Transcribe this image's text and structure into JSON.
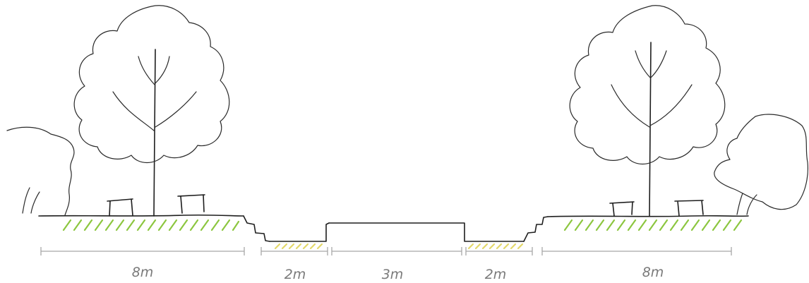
{
  "dimensions": [
    {
      "label": "8m"
    },
    {
      "label": "2m"
    },
    {
      "label": "3m"
    },
    {
      "label": "2m"
    },
    {
      "label": "8m"
    }
  ],
  "colors": {
    "ink": "#1e1e1e",
    "dimension": "#a8a8a8",
    "grass_hatch": "#8cc63f",
    "path_hatch": "#e3d86a"
  }
}
